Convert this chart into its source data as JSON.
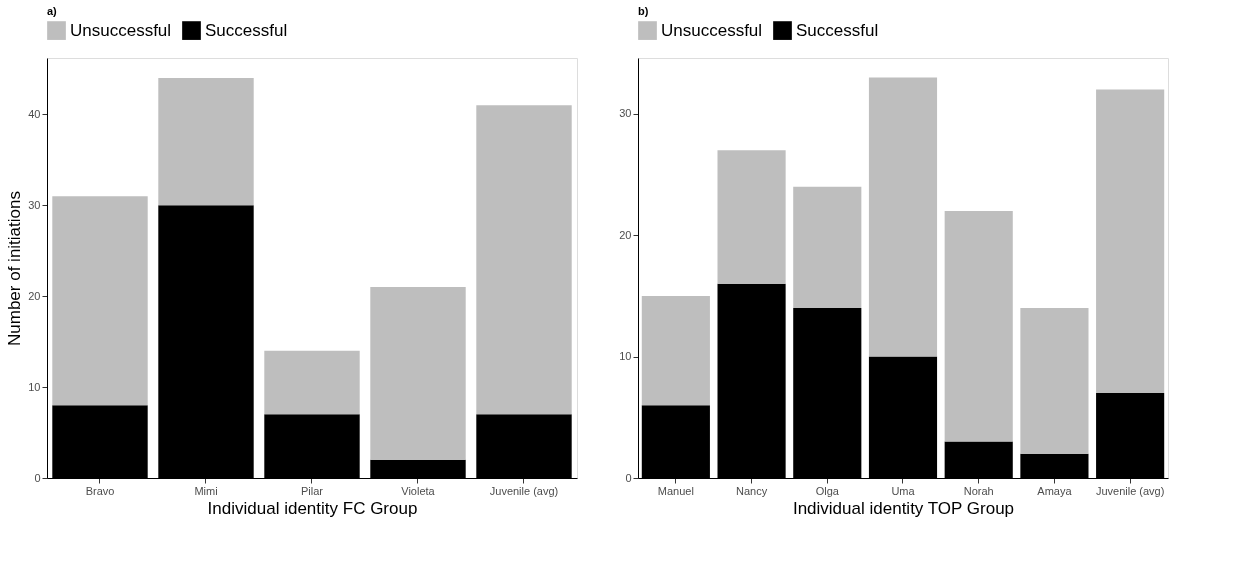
{
  "chart_data": [
    {
      "type": "bar",
      "title": "a)",
      "xlabel": "Individual identity FC Group",
      "ylabel": "Number of initiations",
      "categories": [
        "Bravo",
        "Mimi",
        "Pilar",
        "Violeta",
        "Juvenile (avg)"
      ],
      "stacked": true,
      "legend": "top",
      "grid": false,
      "ylim": [
        0,
        46.2
      ],
      "yticks": [
        0,
        10,
        20,
        30,
        40
      ],
      "series": [
        {
          "name": "Successful",
          "color": "#000000",
          "values": [
            8,
            30,
            7,
            2,
            7
          ]
        },
        {
          "name": "Unsuccessful",
          "color": "#bebebe",
          "values": [
            23,
            14,
            7,
            19,
            34
          ]
        }
      ]
    },
    {
      "type": "bar",
      "title": "b)",
      "xlabel": "Individual identity TOP Group",
      "categories": [
        "Manuel",
        "Nancy",
        "Olga",
        "Uma",
        "Norah",
        "Amaya",
        "Juvenile (avg)"
      ],
      "stacked": true,
      "legend": "top",
      "grid": false,
      "ylim": [
        0,
        34.6
      ],
      "yticks": [
        0,
        10,
        20,
        30
      ],
      "series": [
        {
          "name": "Successful",
          "color": "#000000",
          "values": [
            6,
            16,
            14,
            10,
            3,
            2,
            7
          ]
        },
        {
          "name": "Unsuccessful",
          "color": "#bebebe",
          "values": [
            9,
            11,
            10,
            23,
            19,
            12,
            25
          ]
        }
      ]
    }
  ]
}
